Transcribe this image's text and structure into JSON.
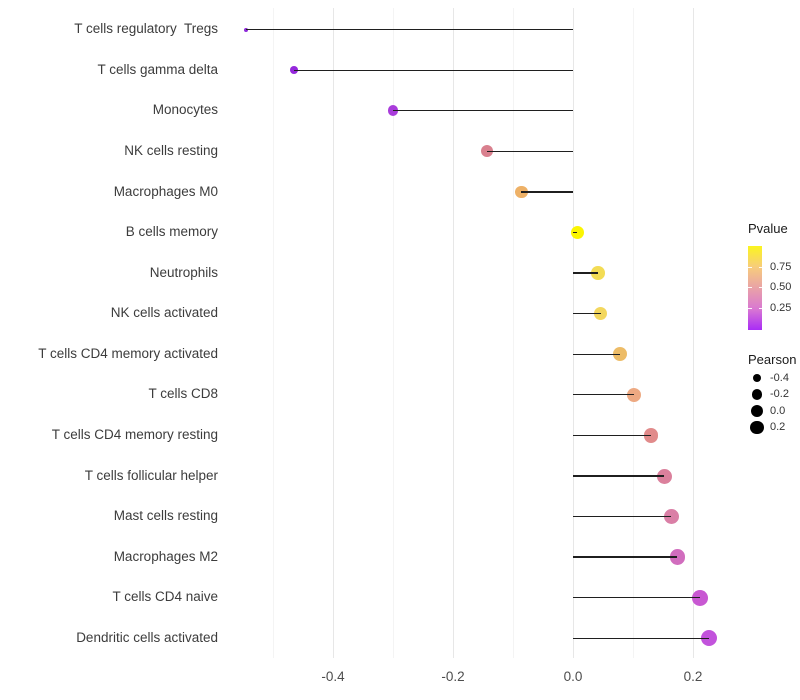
{
  "chart_data": {
    "type": "scatter",
    "subtype": "lollipop",
    "orientation": "horizontal",
    "title": "",
    "xlabel": "",
    "ylabel": "",
    "x_ticks": [
      -0.4,
      -0.2,
      0.0,
      0.2
    ],
    "x_tick_labels": [
      "-0.4",
      "-0.2",
      "0.0",
      "0.2"
    ],
    "xlim": [
      -0.58,
      0.26
    ],
    "baseline_x": 0.0,
    "grid": "vertical gridlines only, faint grey, minor lines every 0.1",
    "points": [
      {
        "label": "T cells regulatory  Tregs",
        "pearson": -0.545,
        "pvalue_approx": 0.02,
        "color": "#8F2BDA",
        "radius": 2.0
      },
      {
        "label": "T cells gamma delta",
        "pearson": -0.465,
        "pvalue_approx": 0.05,
        "color": "#9529DC",
        "radius": 3.9
      },
      {
        "label": "Monocytes",
        "pearson": -0.3,
        "pvalue_approx": 0.1,
        "color": "#A93CDB",
        "radius": 5.4
      },
      {
        "label": "NK cells resting",
        "pearson": -0.143,
        "pvalue_approx": 0.45,
        "color": "#D9808E",
        "radius": 6.0
      },
      {
        "label": "Macrophages M0",
        "pearson": -0.086,
        "pvalue_approx": 0.62,
        "color": "#EEB167",
        "radius": 6.2
      },
      {
        "label": "B cells memory",
        "pearson": 0.007,
        "pvalue_approx": 0.97,
        "color": "#FBF502",
        "radius": 6.6
      },
      {
        "label": "Neutrophils",
        "pearson": 0.042,
        "pvalue_approx": 0.85,
        "color": "#F3DC55",
        "radius": 6.8
      },
      {
        "label": "NK cells activated",
        "pearson": 0.046,
        "pvalue_approx": 0.82,
        "color": "#F3D75E",
        "radius": 6.8
      },
      {
        "label": "T cells CD4 memory activated",
        "pearson": 0.078,
        "pvalue_approx": 0.7,
        "color": "#EDBC67",
        "radius": 7.0
      },
      {
        "label": "T cells CD8",
        "pearson": 0.102,
        "pvalue_approx": 0.6,
        "color": "#EDA982",
        "radius": 7.2
      },
      {
        "label": "T cells CD4 memory resting",
        "pearson": 0.13,
        "pvalue_approx": 0.48,
        "color": "#E18B8B",
        "radius": 7.3
      },
      {
        "label": "T cells follicular helper",
        "pearson": 0.152,
        "pvalue_approx": 0.42,
        "color": "#DB809C",
        "radius": 7.5
      },
      {
        "label": "Mast cells resting",
        "pearson": 0.164,
        "pvalue_approx": 0.37,
        "color": "#DA7FA6",
        "radius": 7.6
      },
      {
        "label": "Macrophages M2",
        "pearson": 0.174,
        "pvalue_approx": 0.3,
        "color": "#D16DBE",
        "radius": 7.7
      },
      {
        "label": "T cells CD4 naive",
        "pearson": 0.212,
        "pvalue_approx": 0.2,
        "color": "#C858D2",
        "radius": 7.9
      },
      {
        "label": "Dendritic cells activated",
        "pearson": 0.226,
        "pvalue_approx": 0.17,
        "color": "#C253DC",
        "radius": 8.0
      }
    ],
    "legend": {
      "position": "right",
      "color_legend": {
        "title": "Pvalue",
        "tick_labels": [
          "0.75",
          "0.50",
          "0.25"
        ],
        "range": [
          0,
          1
        ],
        "gradient_stops": [
          "#FBF51E",
          "#F7CC7C",
          "#E9A2A7",
          "#D978D2",
          "#A92CF6"
        ]
      },
      "size_legend": {
        "title": "Pearson",
        "tick_labels": [
          "-0.4",
          "-0.2",
          "0.0",
          "0.2"
        ]
      }
    },
    "colors": {
      "stem": "#1f1f1f",
      "grid_major": "#e7e7e7",
      "grid_minor": "#f4f4f4",
      "axis_text": "#4d4d4d",
      "background": "#ffffff"
    }
  }
}
